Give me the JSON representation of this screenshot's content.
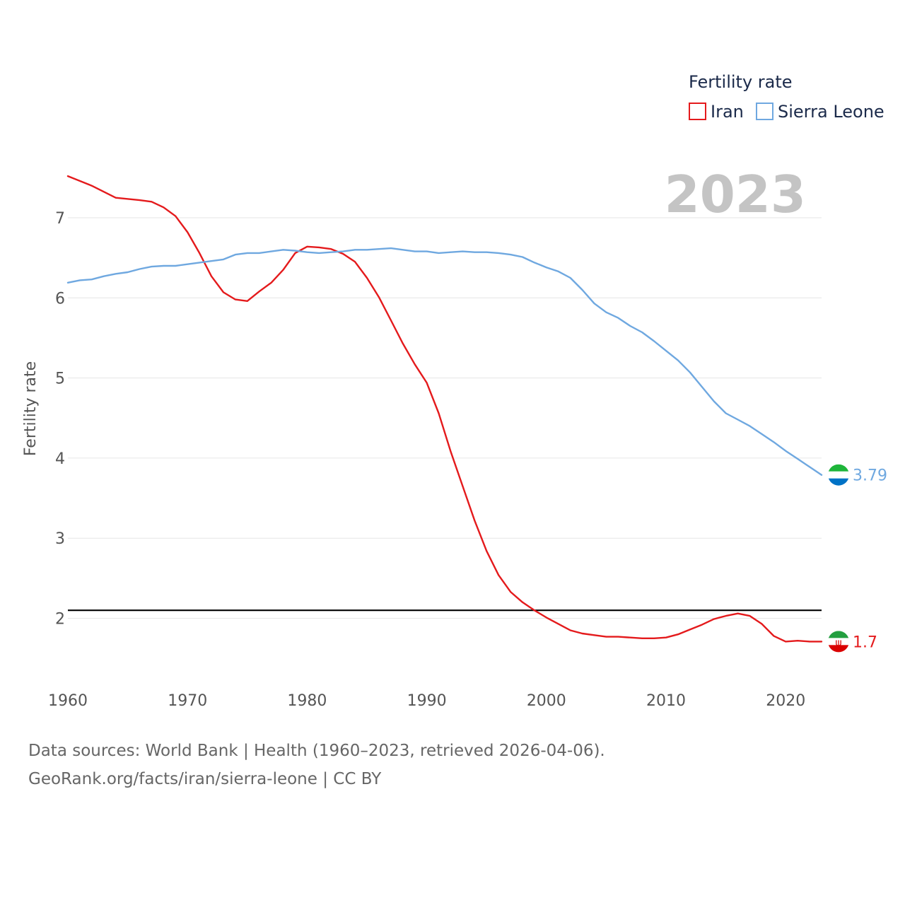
{
  "chart_data": {
    "type": "line",
    "title": "Fertility rate",
    "year_label": "2023",
    "ylabel": "Fertility rate",
    "xlabel": "",
    "xlim": [
      1960,
      2023
    ],
    "ylim": [
      1.3,
      7.6
    ],
    "x_ticks": [
      1960,
      1970,
      1980,
      1990,
      2000,
      2010,
      2020
    ],
    "y_ticks": [
      2,
      3,
      4,
      5,
      6,
      7
    ],
    "reference_line": {
      "y": 2.1,
      "color": "#000000"
    },
    "legend_position": "top-right",
    "series": [
      {
        "name": "Iran",
        "color": "#e41a1c",
        "end_label": "1.7",
        "x": [
          1960,
          1962,
          1964,
          1966,
          1967,
          1968,
          1969,
          1970,
          1971,
          1972,
          1973,
          1974,
          1975,
          1976,
          1977,
          1978,
          1979,
          1980,
          1981,
          1982,
          1983,
          1984,
          1985,
          1986,
          1987,
          1988,
          1989,
          1990,
          1991,
          1992,
          1993,
          1994,
          1995,
          1996,
          1997,
          1998,
          1999,
          2000,
          2001,
          2002,
          2003,
          2004,
          2005,
          2006,
          2007,
          2008,
          2009,
          2010,
          2011,
          2012,
          2013,
          2014,
          2015,
          2016,
          2017,
          2018,
          2019,
          2020,
          2021,
          2022,
          2023
        ],
        "values": [
          7.52,
          7.4,
          7.25,
          7.22,
          7.2,
          7.13,
          7.02,
          6.82,
          6.56,
          6.27,
          6.07,
          5.98,
          5.96,
          6.08,
          6.19,
          6.35,
          6.56,
          6.64,
          6.63,
          6.61,
          6.55,
          6.45,
          6.25,
          6.01,
          5.72,
          5.43,
          5.17,
          4.94,
          4.56,
          4.08,
          3.65,
          3.22,
          2.84,
          2.54,
          2.33,
          2.2,
          2.1,
          2.01,
          1.93,
          1.85,
          1.81,
          1.79,
          1.77,
          1.77,
          1.76,
          1.75,
          1.75,
          1.76,
          1.8,
          1.86,
          1.92,
          1.99,
          2.03,
          2.06,
          2.03,
          1.93,
          1.78,
          1.71,
          1.72,
          1.71,
          1.71
        ]
      },
      {
        "name": "Sierra Leone",
        "color": "#6fa8e0",
        "end_label": "3.79",
        "x": [
          1960,
          1961,
          1962,
          1963,
          1964,
          1965,
          1966,
          1967,
          1968,
          1969,
          1970,
          1971,
          1972,
          1973,
          1974,
          1975,
          1976,
          1977,
          1978,
          1979,
          1980,
          1981,
          1982,
          1983,
          1984,
          1985,
          1986,
          1987,
          1988,
          1989,
          1990,
          1991,
          1992,
          1993,
          1994,
          1995,
          1996,
          1997,
          1998,
          1999,
          2000,
          2001,
          2002,
          2003,
          2004,
          2005,
          2006,
          2007,
          2008,
          2009,
          2010,
          2011,
          2012,
          2013,
          2014,
          2015,
          2016,
          2017,
          2018,
          2019,
          2020,
          2021,
          2022,
          2023
        ],
        "values": [
          6.19,
          6.22,
          6.23,
          6.27,
          6.3,
          6.32,
          6.36,
          6.39,
          6.4,
          6.4,
          6.42,
          6.44,
          6.46,
          6.48,
          6.54,
          6.56,
          6.56,
          6.58,
          6.6,
          6.59,
          6.57,
          6.56,
          6.57,
          6.58,
          6.6,
          6.6,
          6.61,
          6.62,
          6.6,
          6.58,
          6.58,
          6.56,
          6.57,
          6.58,
          6.57,
          6.57,
          6.56,
          6.54,
          6.51,
          6.44,
          6.38,
          6.33,
          6.25,
          6.1,
          5.93,
          5.82,
          5.75,
          5.65,
          5.57,
          5.46,
          5.34,
          5.22,
          5.07,
          4.89,
          4.71,
          4.56,
          4.48,
          4.4,
          4.3,
          4.2,
          4.09,
          3.99,
          3.89,
          3.79
        ]
      }
    ]
  },
  "footer": {
    "line1": "Data sources: World Bank | Health (1960–2023, retrieved 2026-04-06).",
    "line2": "GeoRank.org/facts/iran/sierra-leone | CC BY"
  },
  "flag_icons": [
    "iran-flag-icon",
    "sierra-leone-flag-icon"
  ],
  "colors": {
    "iran_flag": [
      "#239f40",
      "#ffffff",
      "#da0000"
    ],
    "sierra_leone_flag": [
      "#1eb53a",
      "#ffffff",
      "#0072c6"
    ]
  }
}
